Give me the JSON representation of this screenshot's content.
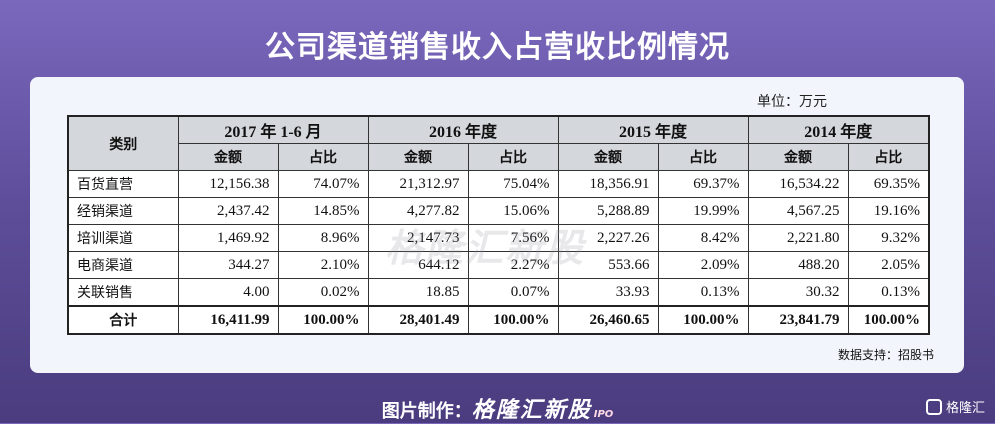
{
  "title": "公司渠道销售收入占营收比例情况",
  "unit_label": "单位：万元",
  "table": {
    "corner_header": "类别",
    "periods": [
      "2017 年 1-6 月",
      "2016 年度",
      "2015 年度",
      "2014 年度"
    ],
    "sub_headers": [
      "金额",
      "占比"
    ],
    "rows": [
      {
        "category": "百货直营",
        "cells": [
          "12,156.38",
          "74.07%",
          "21,312.97",
          "75.04%",
          "18,356.91",
          "69.37%",
          "16,534.22",
          "69.35%"
        ]
      },
      {
        "category": "经销渠道",
        "cells": [
          "2,437.42",
          "14.85%",
          "4,277.82",
          "15.06%",
          "5,288.89",
          "19.99%",
          "4,567.25",
          "19.16%"
        ]
      },
      {
        "category": "培训渠道",
        "cells": [
          "1,469.92",
          "8.96%",
          "2,147.73",
          "7.56%",
          "2,227.26",
          "8.42%",
          "2,221.80",
          "9.32%"
        ]
      },
      {
        "category": "电商渠道",
        "cells": [
          "344.27",
          "2.10%",
          "644.12",
          "2.27%",
          "553.66",
          "2.09%",
          "488.20",
          "2.05%"
        ]
      },
      {
        "category": "关联销售",
        "cells": [
          "4.00",
          "0.02%",
          "18.85",
          "0.07%",
          "33.93",
          "0.13%",
          "30.32",
          "0.13%"
        ]
      }
    ],
    "total": {
      "category": "合计",
      "cells": [
        "16,411.99",
        "100.00%",
        "28,401.49",
        "100.00%",
        "26,460.65",
        "100.00%",
        "23,841.79",
        "100.00%"
      ]
    }
  },
  "source": "数据支持：招股书",
  "watermark": "格隆汇新股",
  "footer": {
    "prefix": "图片制作：",
    "brand": "格隆汇新股",
    "ipo": "IPO"
  },
  "corner_logo": "格隆汇",
  "colors": {
    "background": "#6a5aab",
    "header_fill": "#d4d7dc",
    "card": "#f2f5fb"
  }
}
